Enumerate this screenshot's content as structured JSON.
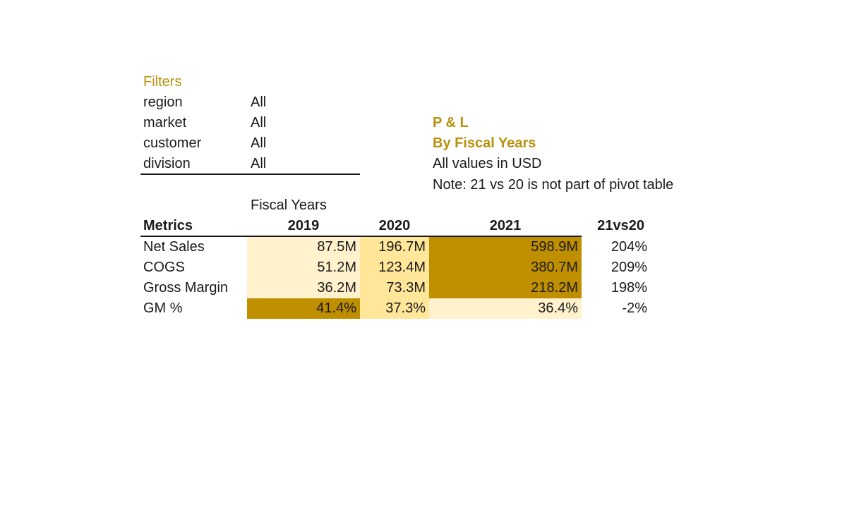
{
  "filters": {
    "heading": "Filters",
    "rows": [
      {
        "name": "region",
        "value": "All"
      },
      {
        "name": "market",
        "value": "All"
      },
      {
        "name": "customer",
        "value": "All"
      },
      {
        "name": "division",
        "value": "All"
      }
    ]
  },
  "report": {
    "title": "P & L",
    "subtitle": "By Fiscal Years",
    "units_note": "All values in USD",
    "note": "Note: 21 vs 20 is not part of pivot table"
  },
  "table": {
    "group_label": "Fiscal Years",
    "metrics_header": "Metrics",
    "year_headers": [
      "2019",
      "2020",
      "2021"
    ],
    "diff_header": "21vs20",
    "rows": [
      {
        "label": "Net Sales",
        "values": [
          "87.5M",
          "196.7M",
          "598.9M"
        ],
        "diff": "204%"
      },
      {
        "label": "COGS",
        "values": [
          "51.2M",
          "123.4M",
          "380.7M"
        ],
        "diff": "209%"
      },
      {
        "label": "Gross Margin",
        "values": [
          "36.2M",
          "73.3M",
          "218.2M"
        ],
        "diff": "198%"
      },
      {
        "label": "GM %",
        "values": [
          "41.4%",
          "37.3%",
          "36.4%"
        ],
        "diff": "-2%"
      }
    ]
  },
  "colors": {
    "accent_text": "#b8900f",
    "heat_dark": "#bf8f00",
    "heat_medium": "#ffe699",
    "heat_light": "#fff2cc"
  }
}
